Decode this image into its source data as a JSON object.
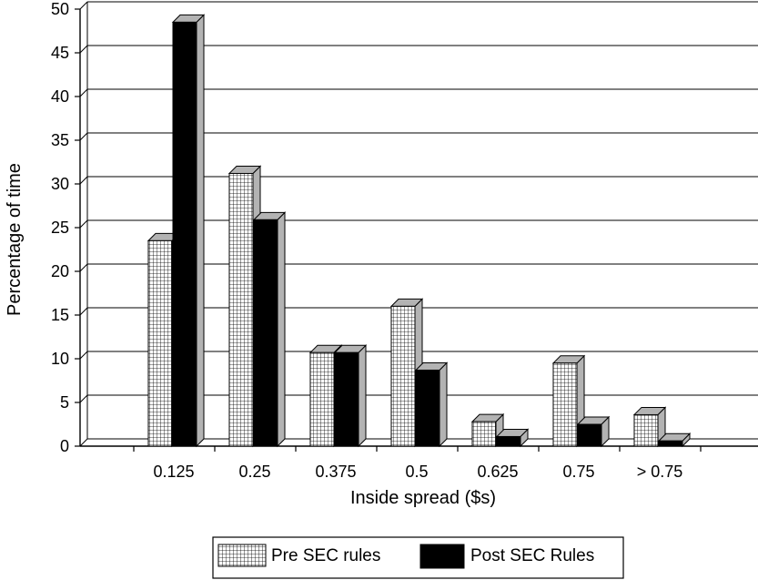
{
  "chart_data": {
    "type": "bar",
    "categories": [
      "0.125",
      "0.25",
      "0.375",
      "0.5",
      "0.625",
      "0.75",
      "> 0.75"
    ],
    "series": [
      {
        "name": "Pre SEC rules",
        "values": [
          23.5,
          31.2,
          10.7,
          16.0,
          2.8,
          9.5,
          3.6
        ],
        "pattern": "grid",
        "color": "#ffffff"
      },
      {
        "name": "Post SEC Rules",
        "values": [
          48.5,
          25.9,
          10.7,
          8.7,
          1.1,
          2.5,
          0.6
        ],
        "pattern": "solid",
        "color": "#000000"
      }
    ],
    "title": "",
    "xlabel": "Inside spread ($s)",
    "ylabel": "Percentage of time",
    "ylim": [
      0,
      50
    ],
    "yticks": [
      0,
      5,
      10,
      15,
      20,
      25,
      30,
      35,
      40,
      45,
      50
    ],
    "grid": true,
    "legend": "bottom-center",
    "side_color": "#b3b3b3"
  }
}
